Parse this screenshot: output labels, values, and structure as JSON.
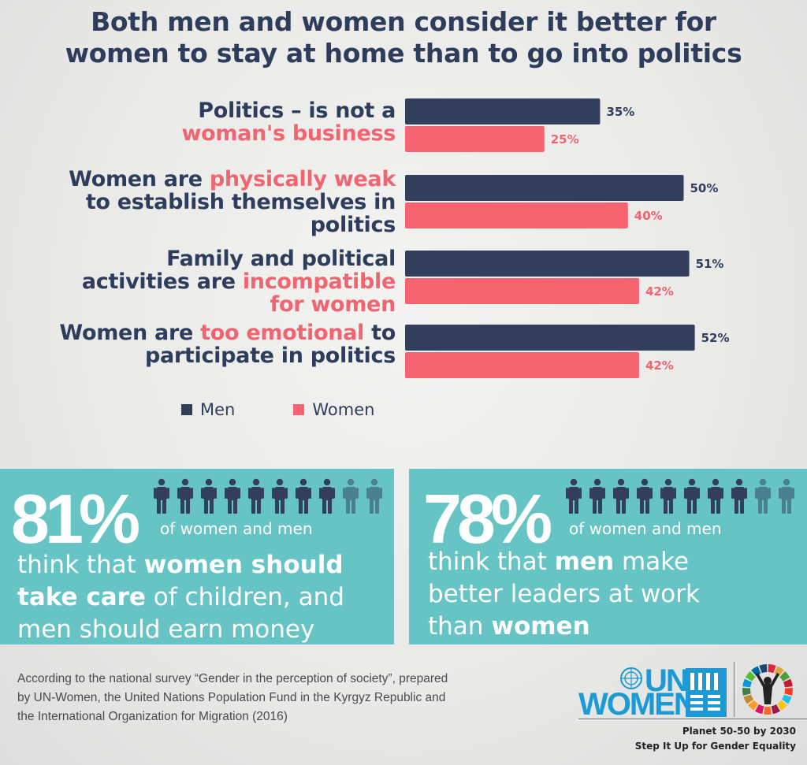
{
  "title": {
    "line1": "Both men and women consider it better for",
    "line2": "women to stay at home than to go into politics"
  },
  "colors": {
    "men": "#323e5c",
    "women": "#f6646f",
    "panel": "#66c5c4",
    "accent": "#f16570"
  },
  "chart_data": {
    "type": "bar",
    "orientation": "horizontal",
    "categories": [
      "Politics – is not a woman's business",
      "Women are physically weak to establish themselves in politics",
      "Family and political activities are incompatible for women",
      "Women are too emotional to participate in politics"
    ],
    "series": [
      {
        "name": "Men",
        "values": [
          35,
          50,
          51,
          52
        ],
        "labels": [
          "35%",
          "50%",
          "51%",
          "52%"
        ]
      },
      {
        "name": "Women",
        "values": [
          25,
          40,
          42,
          42
        ],
        "labels": [
          "25%",
          "40%",
          "42%",
          "42%"
        ]
      }
    ],
    "xlim": [
      0,
      100
    ],
    "legend_position": "bottom-left",
    "grid": false
  },
  "labels": {
    "c1": {
      "a": "Politics – is not a",
      "b": "woman's business"
    },
    "c2": {
      "a": "Women are ",
      "a_hl": "physically weak",
      "b": "to establish themselves in",
      "c": "politics"
    },
    "c3": {
      "a": "Family and political",
      "b": "activities are ",
      "b_hl": "incompatible",
      "c": "for women"
    },
    "c4": {
      "a": "Women are ",
      "a_hl": "too emotional",
      "a_end": " to",
      "b": "participate in politics"
    }
  },
  "legend": {
    "men": "Men",
    "women": "Women"
  },
  "panel_left": {
    "percent": "81%",
    "sub": "of women and men",
    "t1": "think that ",
    "t1_b": "women should",
    "t2_b": "take care",
    "t2": " of children, and",
    "t3": "men should earn money",
    "people_filled": 8,
    "people_total": 10
  },
  "panel_right": {
    "percent": "78%",
    "sub": "of women and men",
    "t1": "think that ",
    "t1_b": "men",
    "t1_end": " make",
    "t2": "better leaders at work",
    "t3": "than ",
    "t3_b": "women",
    "people_filled": 8,
    "people_total": 10
  },
  "footer": {
    "l1": "According to the national survey “Gender in the perception of society”, prepared",
    "l2": "by UN-Women, the United Nations Population Fund in the Kyrgyz Republic and",
    "l3": "the International Organization for Migration (2016)"
  },
  "logo": {
    "un": "UN",
    "women": "WOMEN"
  },
  "tagline": {
    "l1": "Planet  50-50 by 2030",
    "l2": "Step It Up for Gender Equality"
  }
}
